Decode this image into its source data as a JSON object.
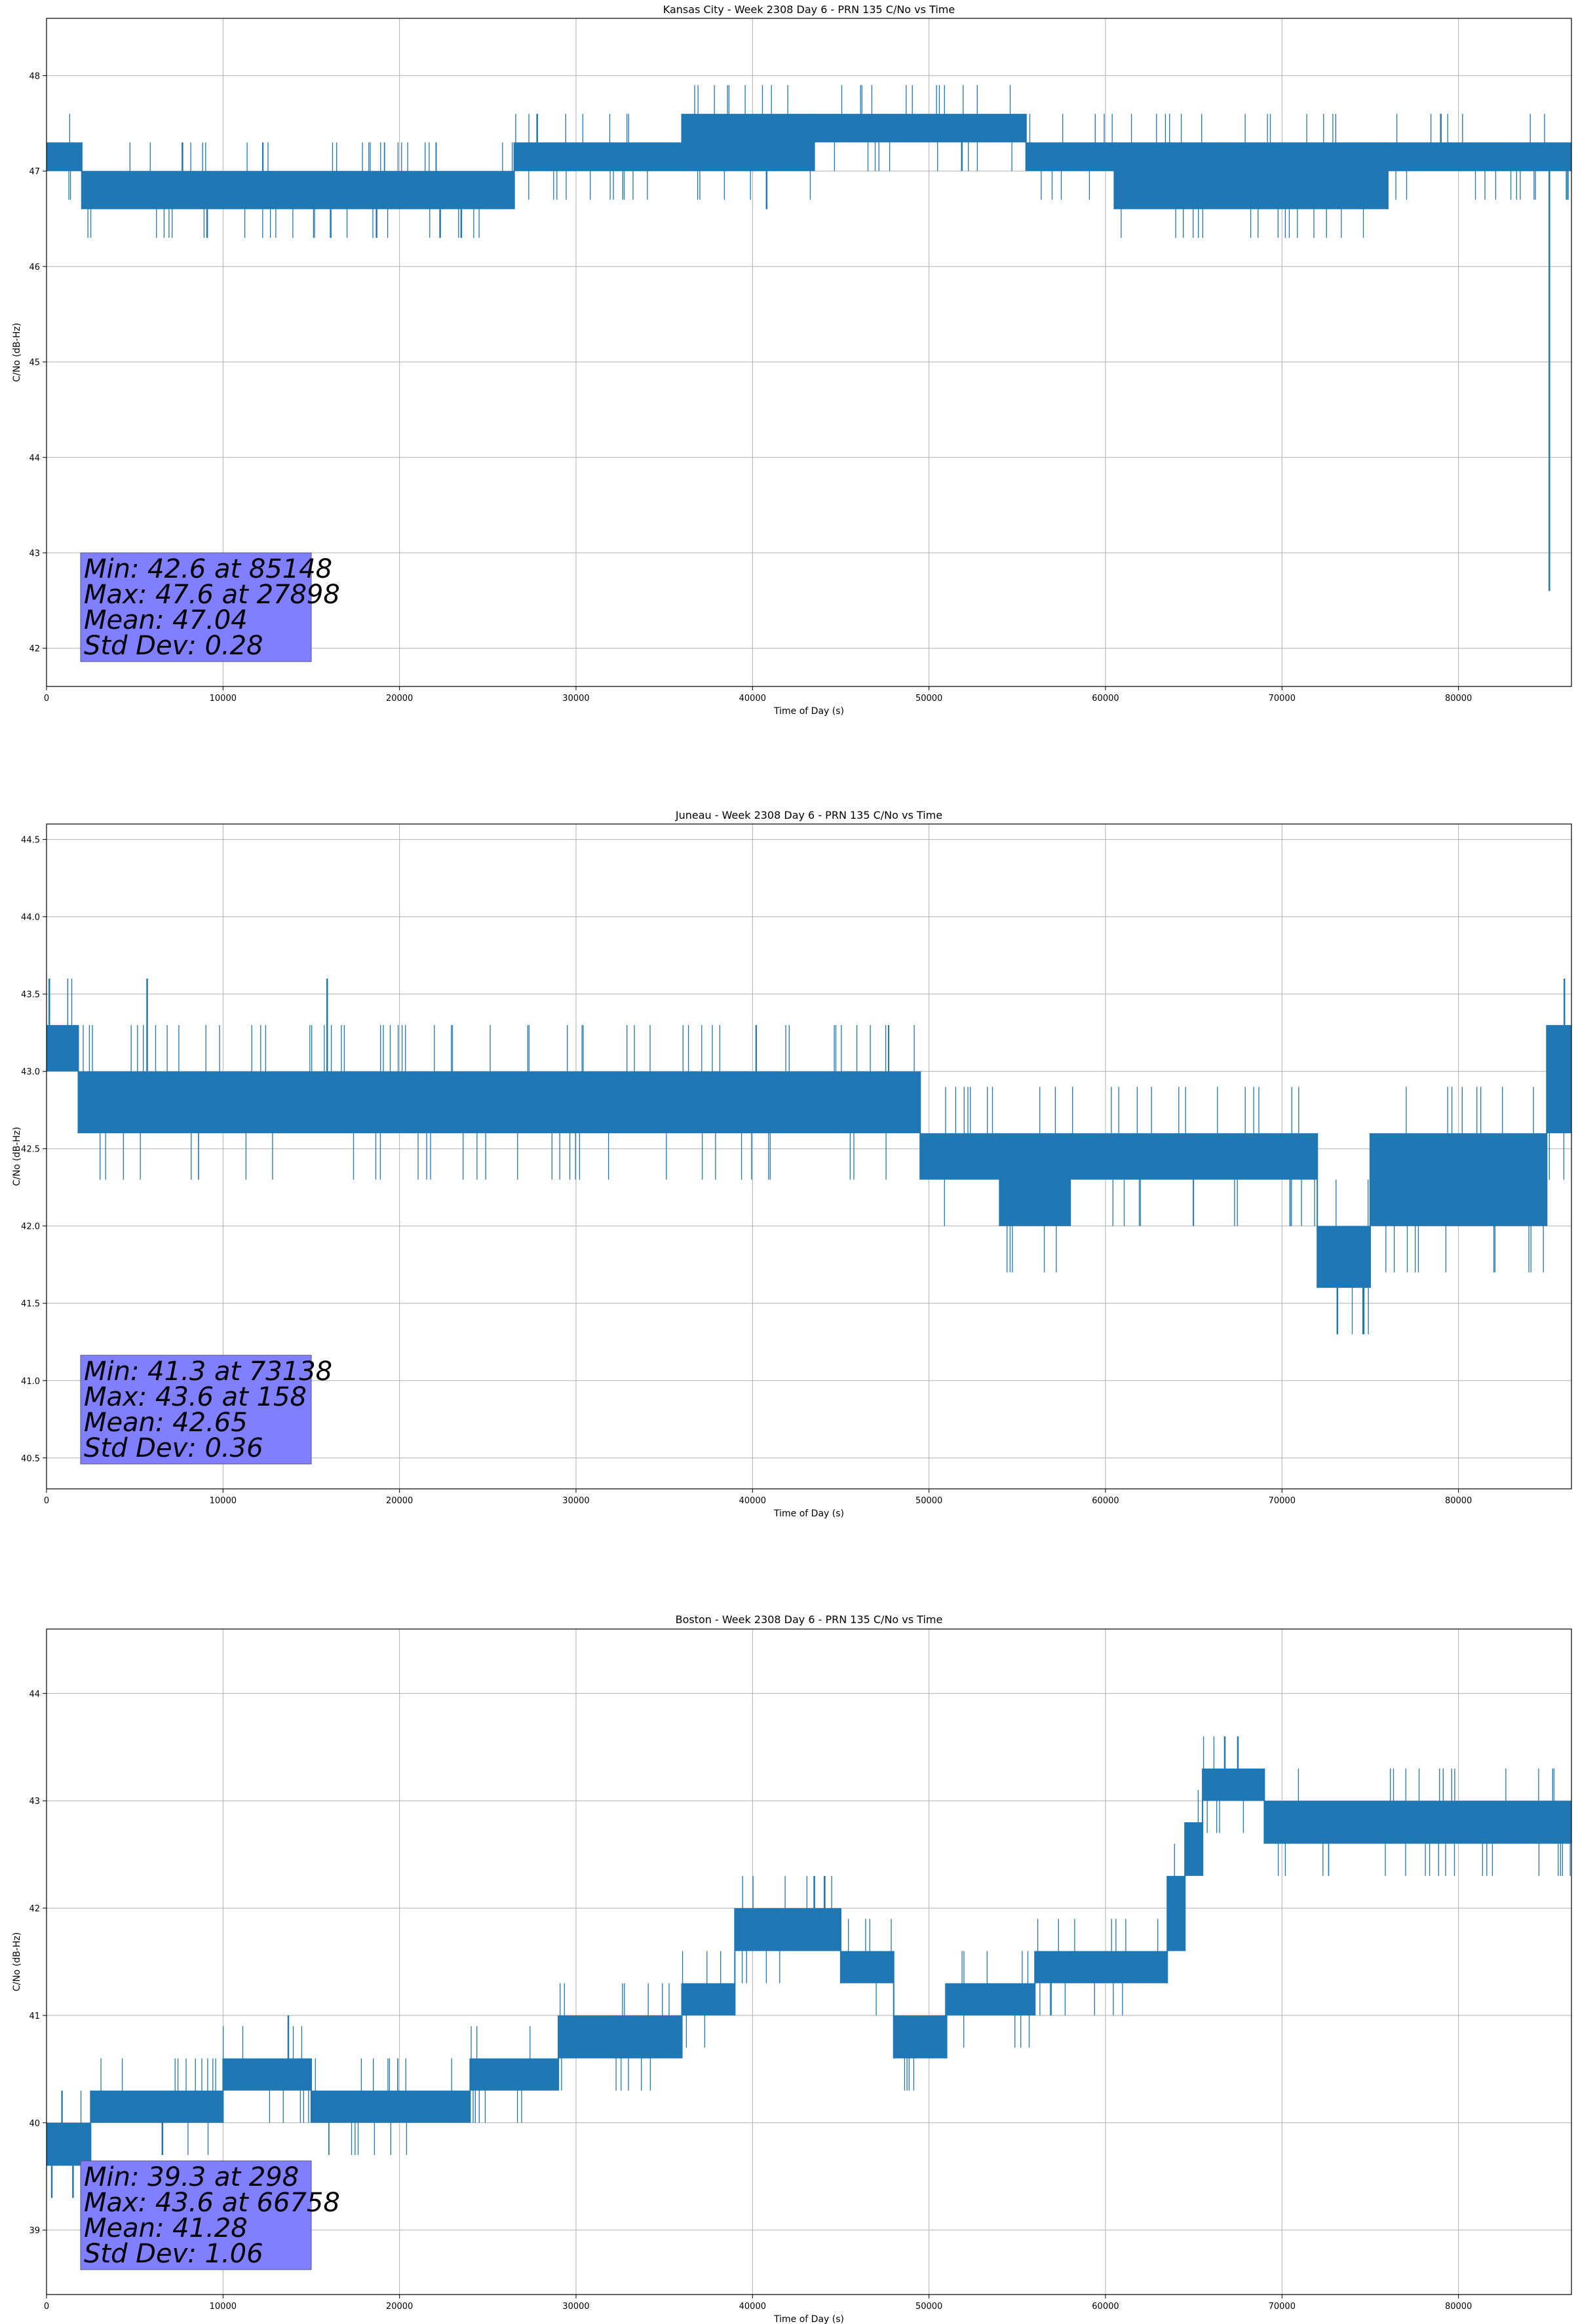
{
  "chart_data": [
    {
      "type": "line",
      "title": "Kansas City - Week 2308 Day 6 - PRN 135 C/No vs Time",
      "xlabel": "Time of Day (s)",
      "ylabel": "C/No (dB-Hz)",
      "xlim": [
        0,
        86400
      ],
      "ylim": [
        41.6,
        48.6
      ],
      "xticks": [
        0,
        10000,
        20000,
        30000,
        40000,
        50000,
        60000,
        70000,
        80000
      ],
      "yticks": [
        42,
        43,
        44,
        45,
        46,
        47,
        48
      ],
      "grid": true,
      "series_color": "#1f77b4",
      "bands": [
        {
          "x0": 0,
          "x1": 2000,
          "lo": 47.0,
          "hi": 47.3
        },
        {
          "x0": 2000,
          "x1": 26500,
          "lo": 46.6,
          "hi": 47.0
        },
        {
          "x0": 26500,
          "x1": 36000,
          "lo": 47.0,
          "hi": 47.3
        },
        {
          "x0": 36000,
          "x1": 43500,
          "lo": 47.0,
          "hi": 47.6
        },
        {
          "x0": 43500,
          "x1": 55500,
          "lo": 47.3,
          "hi": 47.6
        },
        {
          "x0": 55500,
          "x1": 60500,
          "lo": 47.0,
          "hi": 47.3
        },
        {
          "x0": 60500,
          "x1": 76000,
          "lo": 46.6,
          "hi": 47.3
        },
        {
          "x0": 76000,
          "x1": 86400,
          "lo": 47.0,
          "hi": 47.3
        }
      ],
      "spikes": [
        [
          7700,
          47.3
        ],
        [
          9100,
          46.3
        ],
        [
          16100,
          46.3
        ],
        [
          18700,
          46.3
        ],
        [
          22300,
          46.3
        ],
        [
          23500,
          46.3
        ],
        [
          27800,
          47.6
        ],
        [
          40800,
          46.6
        ],
        [
          49000,
          47.6
        ],
        [
          79000,
          47.6
        ],
        [
          85148,
          42.6
        ]
      ],
      "stats_lines": [
        "Min: 42.6 at 85148",
        "Max: 47.6 at 27898",
        "Mean: 47.04",
        "Std Dev: 0.28"
      ]
    },
    {
      "type": "line",
      "title": "Juneau - Week 2308 Day 6 - PRN 135 C/No vs Time",
      "xlabel": "Time of Day (s)",
      "ylabel": "C/No (dB-Hz)",
      "xlim": [
        0,
        86400
      ],
      "ylim": [
        40.3,
        44.6
      ],
      "xticks": [
        0,
        10000,
        20000,
        30000,
        40000,
        50000,
        60000,
        70000,
        80000
      ],
      "yticks": [
        40.5,
        41.0,
        41.5,
        42.0,
        42.5,
        43.0,
        43.5,
        44.0,
        44.5
      ],
      "grid": true,
      "series_color": "#1f77b4",
      "bands": [
        {
          "x0": 0,
          "x1": 1800,
          "lo": 43.0,
          "hi": 43.3
        },
        {
          "x0": 1800,
          "x1": 49500,
          "lo": 42.6,
          "hi": 43.0
        },
        {
          "x0": 49500,
          "x1": 54000,
          "lo": 42.3,
          "hi": 42.6
        },
        {
          "x0": 54000,
          "x1": 58000,
          "lo": 42.0,
          "hi": 42.6
        },
        {
          "x0": 58000,
          "x1": 72000,
          "lo": 42.3,
          "hi": 42.6
        },
        {
          "x0": 72000,
          "x1": 75000,
          "lo": 41.6,
          "hi": 42.0
        },
        {
          "x0": 75000,
          "x1": 85000,
          "lo": 42.0,
          "hi": 42.6
        },
        {
          "x0": 85000,
          "x1": 86400,
          "lo": 42.6,
          "hi": 43.3
        }
      ],
      "spikes": [
        [
          158,
          43.6
        ],
        [
          5700,
          43.6
        ],
        [
          15900,
          43.6
        ],
        [
          73138,
          41.3
        ],
        [
          74600,
          41.3
        ],
        [
          86000,
          43.6
        ]
      ],
      "stats_lines": [
        "Min: 41.3 at 73138",
        "Max: 43.6 at 158",
        "Mean: 42.65",
        "Std Dev: 0.36"
      ]
    },
    {
      "type": "line",
      "title": "Boston - Week 2308 Day 6 - PRN 135 C/No vs Time",
      "xlabel": "Time of Day (s)",
      "ylabel": "C/No (dB-Hz)",
      "xlim": [
        0,
        86400
      ],
      "ylim": [
        38.4,
        44.6
      ],
      "xticks": [
        0,
        10000,
        20000,
        30000,
        40000,
        50000,
        60000,
        70000,
        80000
      ],
      "yticks": [
        39,
        40,
        41,
        42,
        43,
        44
      ],
      "grid": true,
      "series_color": "#1f77b4",
      "bands": [
        {
          "x0": 0,
          "x1": 2500,
          "lo": 39.6,
          "hi": 40.0
        },
        {
          "x0": 2500,
          "x1": 10000,
          "lo": 40.0,
          "hi": 40.3
        },
        {
          "x0": 10000,
          "x1": 15000,
          "lo": 40.3,
          "hi": 40.6
        },
        {
          "x0": 15000,
          "x1": 24000,
          "lo": 40.0,
          "hi": 40.3
        },
        {
          "x0": 24000,
          "x1": 29000,
          "lo": 40.3,
          "hi": 40.6
        },
        {
          "x0": 29000,
          "x1": 36000,
          "lo": 40.6,
          "hi": 41.0
        },
        {
          "x0": 36000,
          "x1": 39000,
          "lo": 41.0,
          "hi": 41.3
        },
        {
          "x0": 39000,
          "x1": 45000,
          "lo": 41.6,
          "hi": 42.0
        },
        {
          "x0": 45000,
          "x1": 48000,
          "lo": 41.3,
          "hi": 41.6
        },
        {
          "x0": 48000,
          "x1": 51000,
          "lo": 40.6,
          "hi": 41.0
        },
        {
          "x0": 51000,
          "x1": 56000,
          "lo": 41.0,
          "hi": 41.3
        },
        {
          "x0": 56000,
          "x1": 63500,
          "lo": 41.3,
          "hi": 41.6
        },
        {
          "x0": 63500,
          "x1": 64500,
          "lo": 41.6,
          "hi": 42.3
        },
        {
          "x0": 64500,
          "x1": 65500,
          "lo": 42.3,
          "hi": 42.8
        },
        {
          "x0": 65500,
          "x1": 69000,
          "lo": 43.0,
          "hi": 43.3
        },
        {
          "x0": 69000,
          "x1": 86400,
          "lo": 42.6,
          "hi": 43.0
        }
      ],
      "spikes": [
        [
          298,
          39.3
        ],
        [
          1500,
          39.3
        ],
        [
          13700,
          41.0
        ],
        [
          43500,
          42.3
        ],
        [
          66758,
          43.6
        ],
        [
          67500,
          43.6
        ]
      ],
      "stats_lines": [
        "Min: 39.3 at 298",
        "Max: 43.6 at 66758",
        "Mean: 41.28",
        "Std Dev: 1.06"
      ]
    }
  ]
}
